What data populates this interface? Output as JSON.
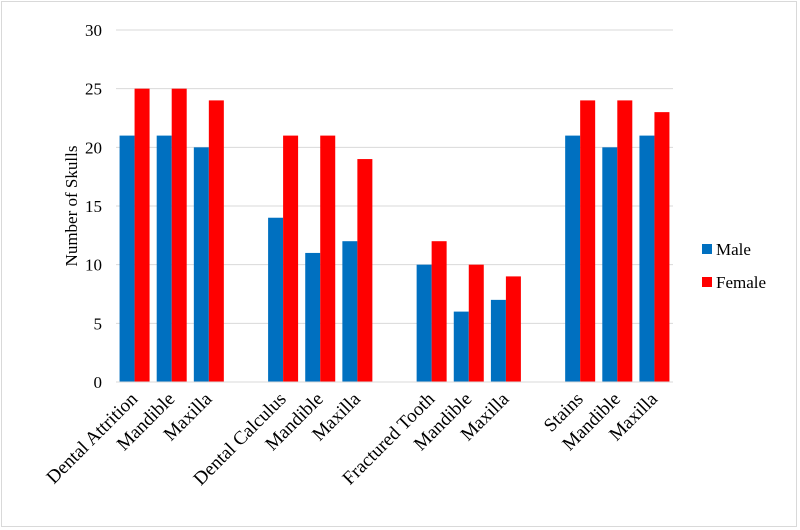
{
  "chart_data": {
    "type": "bar",
    "categories": [
      "Dental Attrition",
      "Mandible",
      "Maxilla",
      "",
      "Dental Calculus",
      "Mandible",
      "Maxilla",
      "",
      "Fractured Tooth",
      "Mandible",
      "Maxilla",
      "",
      "Stains",
      "Mandible",
      "Maxilla"
    ],
    "series": [
      {
        "name": "Male",
        "color": "#0070c0",
        "values": [
          21,
          21,
          20,
          null,
          14,
          11,
          12,
          null,
          10,
          6,
          7,
          null,
          21,
          20,
          21
        ]
      },
      {
        "name": "Female",
        "color": "#ff0000",
        "values": [
          25,
          25,
          24,
          null,
          21,
          21,
          19,
          null,
          12,
          10,
          9,
          null,
          24,
          24,
          23
        ]
      }
    ],
    "ylabel": "Number of Skulls",
    "ylim": [
      0,
      30
    ],
    "yticks": [
      0,
      5,
      10,
      15,
      20,
      25,
      30
    ],
    "grid": true,
    "legend": "right"
  }
}
